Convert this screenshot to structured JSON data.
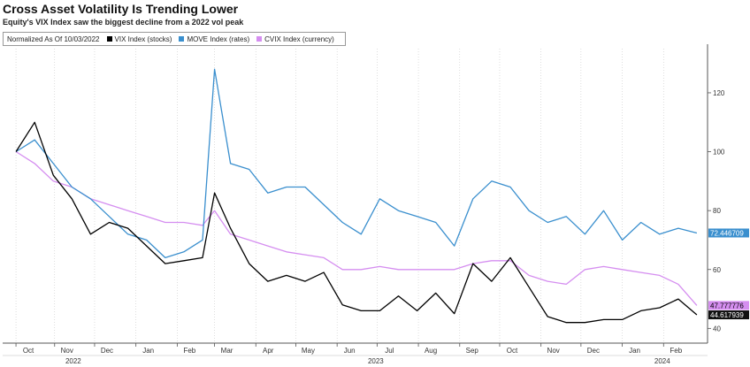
{
  "title": "Cross Asset Volatility Is Trending Lower",
  "subtitle": "Equity's VIX Index saw the biggest decline from a 2022 vol peak",
  "legend": {
    "prefix": "Normalized As Of 10/03/2022",
    "items": [
      {
        "label": "VIX Index (stocks)",
        "color": "#000000"
      },
      {
        "label": "MOVE Index (rates)",
        "color": "#3a8fce"
      },
      {
        "label": "CVIX Index (currency)",
        "color": "#d58ef0"
      }
    ]
  },
  "end_labels": [
    {
      "text": "72.446709",
      "bg": "#3a8fce",
      "color": "#ffffff"
    },
    {
      "text": "47.777776",
      "bg": "#d58ef0",
      "color": "#000000"
    },
    {
      "text": "44.617939",
      "bg": "#111111",
      "color": "#ffffff"
    }
  ],
  "chart_data": {
    "type": "line",
    "x": [
      "2022-10-03",
      "2022-10-17",
      "2022-10-31",
      "2022-11-14",
      "2022-11-28",
      "2022-12-12",
      "2022-12-26",
      "2023-01-09",
      "2023-01-23",
      "2023-02-06",
      "2023-02-20",
      "2023-03-01",
      "2023-03-13",
      "2023-03-27",
      "2023-04-10",
      "2023-04-24",
      "2023-05-08",
      "2023-05-22",
      "2023-06-05",
      "2023-06-19",
      "2023-07-03",
      "2023-07-17",
      "2023-07-31",
      "2023-08-14",
      "2023-08-28",
      "2023-09-11",
      "2023-09-25",
      "2023-10-09",
      "2023-10-23",
      "2023-11-06",
      "2023-11-20",
      "2023-12-04",
      "2023-12-18",
      "2024-01-01",
      "2024-01-15",
      "2024-01-29",
      "2024-02-12",
      "2024-02-26"
    ],
    "series": [
      {
        "name": "VIX Index (stocks)",
        "color": "#000000",
        "values": [
          100,
          110,
          92,
          84,
          72,
          76,
          74,
          68,
          62,
          63,
          64,
          86,
          74,
          62,
          56,
          58,
          56,
          59,
          48,
          46,
          46,
          51,
          46,
          52,
          45,
          62,
          56,
          64,
          54,
          44,
          42,
          42,
          43,
          43,
          46,
          47,
          50,
          44.6
        ]
      },
      {
        "name": "MOVE Index (rates)",
        "color": "#3a8fce",
        "values": [
          100,
          104,
          96,
          88,
          84,
          78,
          72,
          70,
          64,
          66,
          70,
          128,
          96,
          94,
          86,
          88,
          88,
          82,
          76,
          72,
          84,
          80,
          78,
          76,
          68,
          84,
          90,
          88,
          80,
          76,
          78,
          72,
          80,
          70,
          76,
          72,
          74,
          72.4
        ]
      },
      {
        "name": "CVIX Index (currency)",
        "color": "#d58ef0",
        "values": [
          100,
          96,
          90,
          88,
          84,
          82,
          80,
          78,
          76,
          76,
          75,
          80,
          72,
          70,
          68,
          66,
          65,
          64,
          60,
          60,
          61,
          60,
          60,
          60,
          60,
          62,
          63,
          63,
          58,
          56,
          55,
          60,
          61,
          60,
          59,
          58,
          55,
          47.8
        ]
      }
    ],
    "x_ticks": [
      {
        "label": "Oct",
        "date": "2022-10-03"
      },
      {
        "label": "Nov",
        "date": "2022-11-01"
      },
      {
        "label": "Dec",
        "date": "2022-12-01"
      },
      {
        "label": "Jan",
        "date": "2023-01-01"
      },
      {
        "label": "Feb",
        "date": "2023-02-01"
      },
      {
        "label": "Mar",
        "date": "2023-03-01"
      },
      {
        "label": "Apr",
        "date": "2023-04-01"
      },
      {
        "label": "May",
        "date": "2023-05-01"
      },
      {
        "label": "Jun",
        "date": "2023-06-01"
      },
      {
        "label": "Jul",
        "date": "2023-07-01"
      },
      {
        "label": "Aug",
        "date": "2023-08-01"
      },
      {
        "label": "Sep",
        "date": "2023-09-01"
      },
      {
        "label": "Oct",
        "date": "2023-10-01"
      },
      {
        "label": "Nov",
        "date": "2023-11-01"
      },
      {
        "label": "Dec",
        "date": "2023-12-01"
      },
      {
        "label": "Jan",
        "date": "2024-01-01"
      },
      {
        "label": "Feb",
        "date": "2024-02-01"
      }
    ],
    "year_labels": [
      {
        "label": "2022",
        "date": "2022-11-15"
      },
      {
        "label": "2023",
        "date": "2023-06-30"
      },
      {
        "label": "2024",
        "date": "2024-01-31"
      }
    ],
    "y_ticks": [
      40,
      60,
      80,
      100,
      120
    ],
    "xlim": [
      "2022-09-23",
      "2024-03-05"
    ],
    "ylim": [
      35,
      135
    ],
    "y_axis_side": "right",
    "grid": "vertical dotted"
  }
}
